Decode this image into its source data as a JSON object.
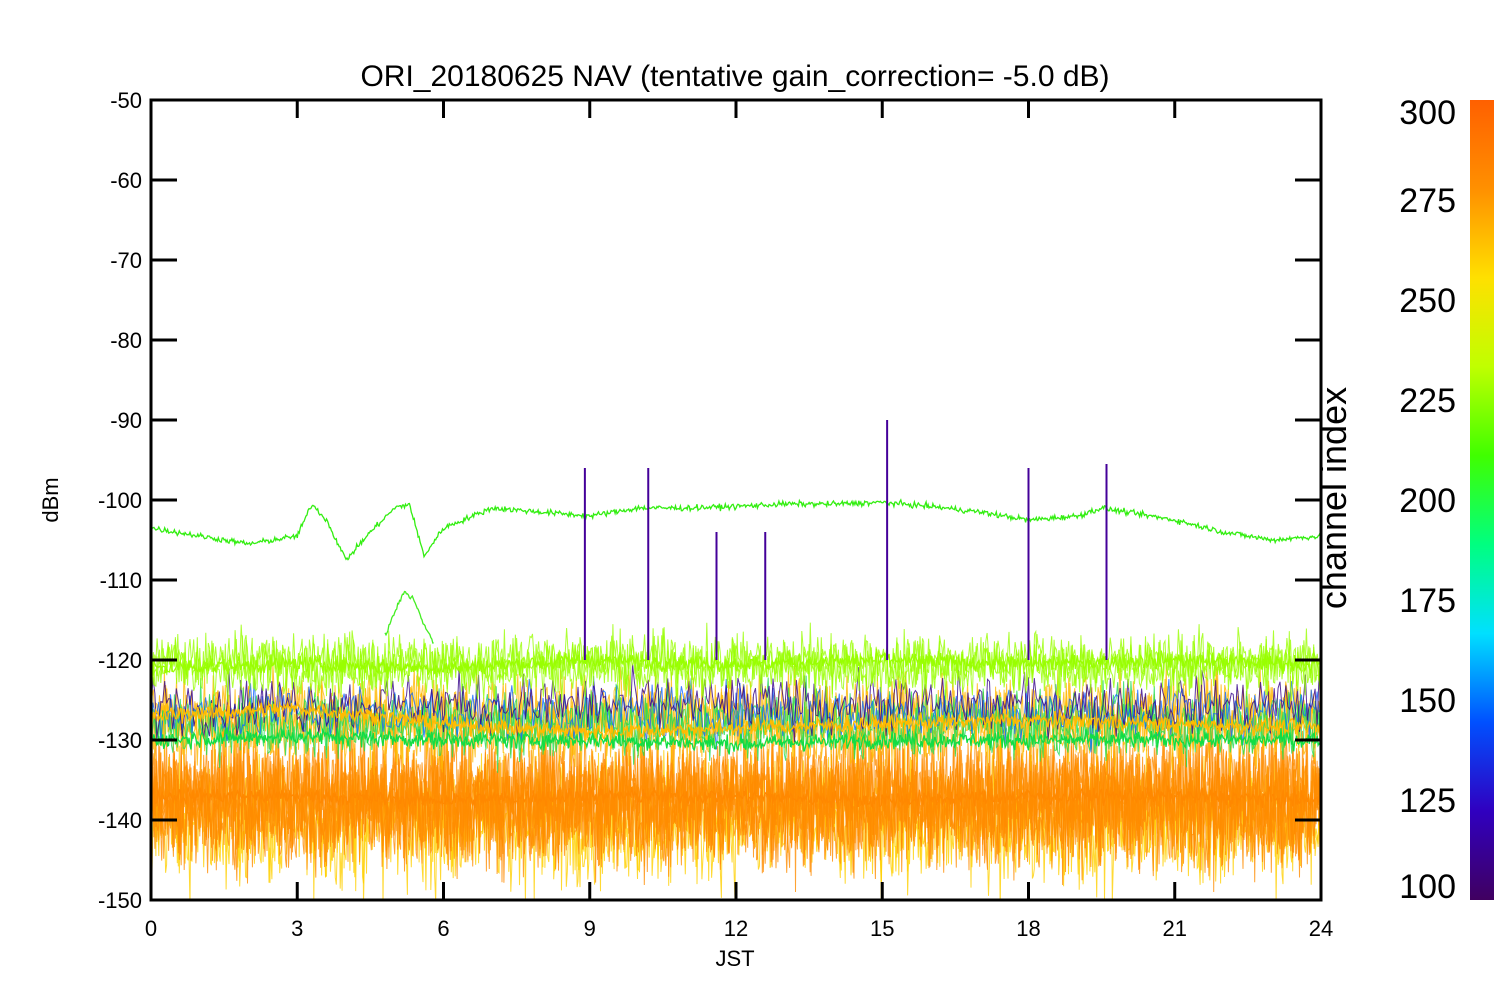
{
  "chart_data": {
    "type": "line",
    "title": "ORI_20180625 NAV (tentative gain_correction= -5.0 dB)",
    "xlabel": "JST",
    "ylabel": "dBm",
    "xlim": [
      0,
      24
    ],
    "ylim": [
      -150,
      -50
    ],
    "xticks": [
      "0",
      "3",
      "6",
      "9",
      "12",
      "15",
      "18",
      "21",
      "24"
    ],
    "yticks": [
      "-50",
      "-60",
      "-70",
      "-80",
      "-90",
      "-100",
      "-110",
      "-120",
      "-130",
      "-140",
      "-150"
    ],
    "grid": false,
    "colorbar": {
      "label": "channel index",
      "range": [
        100,
        300
      ],
      "ticks": [
        "300",
        "275",
        "250",
        "225",
        "200",
        "175",
        "150",
        "125",
        "100"
      ],
      "colormap": [
        "#400060",
        "#3000c0",
        "#0050ff",
        "#00e0ff",
        "#00ff80",
        "#40ff00",
        "#c0ff00",
        "#ffe000",
        "#ff9000",
        "#ff6000"
      ]
    },
    "series": [
      {
        "channel_index": 245,
        "color": "#33ee11",
        "x": [
          0,
          1,
          2,
          3,
          3.3,
          3.6,
          4,
          4.5,
          5,
          5.3,
          5.6,
          6,
          7,
          8,
          9,
          10,
          11,
          12,
          13,
          14,
          15,
          16,
          17,
          18,
          19,
          19.5,
          20,
          21,
          22,
          23,
          24
        ],
        "y": [
          -103.5,
          -104.5,
          -105.5,
          -104.5,
          -100.5,
          -102.5,
          -107.5,
          -104,
          -101,
          -100.5,
          -107,
          -103.5,
          -101,
          -101.5,
          -102,
          -101,
          -101,
          -100.8,
          -100.5,
          -100.5,
          -100.3,
          -100.8,
          -101.5,
          -102.5,
          -102,
          -101,
          -101.5,
          -102.5,
          -104,
          -105,
          -104.5
        ]
      },
      {
        "channel_index": 235,
        "color": "#44ee22",
        "x": [
          4.8,
          5,
          5.2,
          5.4,
          5.6,
          5.8
        ],
        "y": [
          -117,
          -114,
          -111.5,
          -112.5,
          -115.5,
          -118
        ]
      },
      {
        "channel_index": 260,
        "color": "#99ff00",
        "x": [
          0,
          3,
          6,
          9,
          12,
          15,
          18,
          21,
          24
        ],
        "y": [
          -121,
          -120.5,
          -121,
          -120,
          -120.5,
          -120,
          -120.5,
          -120,
          -120.5
        ]
      },
      {
        "channel_index": 280,
        "color": "#ffbb00",
        "x": [
          0,
          3,
          6,
          9,
          12,
          15,
          18,
          21,
          24
        ],
        "y": [
          -127,
          -126,
          -128,
          -129,
          -128.5,
          -128,
          -127.5,
          -128,
          -128.5
        ]
      },
      {
        "channel_index": 230,
        "color": "#11dd44",
        "x": [
          0,
          3,
          6,
          9,
          12,
          15,
          18,
          21,
          24
        ],
        "y": [
          -130,
          -129.5,
          -130,
          -130,
          -130.5,
          -130,
          -130,
          -130,
          -130
        ]
      },
      {
        "channel_index": 290,
        "color": "#ff8800",
        "x": [
          0,
          3,
          6,
          9,
          12,
          15,
          18,
          21,
          24
        ],
        "y": [
          -137,
          -137,
          -137.5,
          -137,
          -137,
          -137.5,
          -137,
          -137,
          -137.5
        ]
      },
      {
        "channel_index": 120,
        "color": "#440099",
        "x": [
          8.9,
          10.2,
          11.6,
          12.6,
          15.1,
          18,
          19.6
        ],
        "y": [
          -96,
          -96,
          -104,
          -104,
          -90,
          -96,
          -95.5
        ]
      }
    ]
  }
}
